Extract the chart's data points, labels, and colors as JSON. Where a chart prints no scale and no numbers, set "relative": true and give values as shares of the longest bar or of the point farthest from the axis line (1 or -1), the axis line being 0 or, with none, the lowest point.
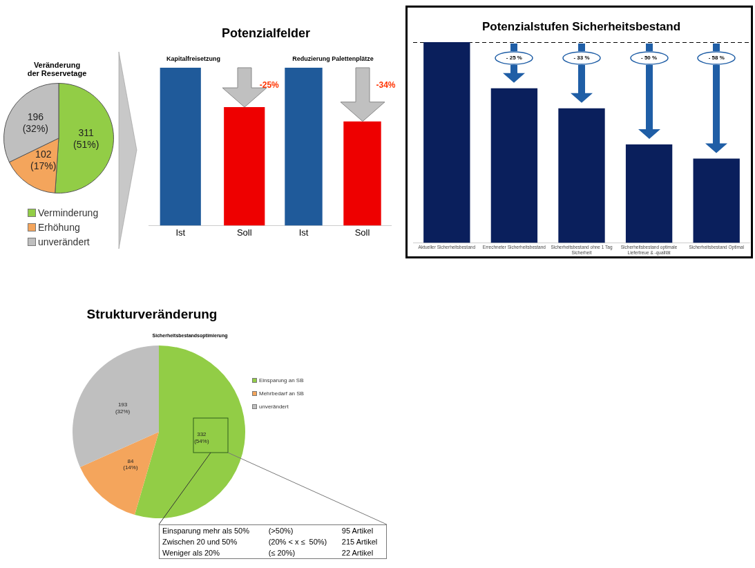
{
  "chart_data": [
    {
      "type": "pie",
      "title": "Veränderung\nder Reservetage",
      "categories": [
        "Verminderung",
        "Erhöhung",
        "unverändert"
      ],
      "values": [
        311,
        102,
        196
      ],
      "colors": [
        "#92cd46",
        "#f4a55c",
        "#bfbfbf"
      ],
      "value_labels": [
        "311\n(51%)",
        "102\n(17%)",
        "196\n(32%)"
      ],
      "legend": "bottom"
    },
    {
      "type": "bar",
      "title": "Potenzialfelder",
      "subtitle": "Kapitalfreisetzung",
      "categories": [
        "Ist",
        "Soll"
      ],
      "values": [
        1,
        0.75
      ],
      "colors": [
        "#1f5a9a",
        "#ee0000"
      ],
      "relative": true,
      "annotations": [
        "-25%"
      ]
    },
    {
      "type": "bar",
      "subtitle": "Reduzierung Palettenplätze",
      "categories": [
        "Ist",
        "Soll"
      ],
      "values": [
        1,
        0.66
      ],
      "colors": [
        "#1f5a9a",
        "#ee0000"
      ],
      "relative": true,
      "annotations": [
        "-34%"
      ]
    },
    {
      "type": "bar",
      "title": "Potenzialstufen Sicherheitsbestand",
      "categories": [
        "Aktueller Sicherheitsbestand",
        "Errechneter Sicherheitsbestand",
        "Sicherheitsbestand ohne 1 Tag Sicherheit",
        "Sicherheitsbestand optimale Liefertreue & -qualität",
        "Sicherheitsbestand Optimal"
      ],
      "values": [
        1,
        0.77,
        0.67,
        0.49,
        0.42
      ],
      "color": "#0a1f5c",
      "relative": true,
      "ref_lines": [
        {
          "axis": "y",
          "value": 1,
          "line_style": "dashed",
          "color": "#000000"
        }
      ],
      "annotations": [
        "- 25 %",
        "- 33 %",
        "- 50 %",
        "- 58 %"
      ]
    },
    {
      "type": "pie",
      "title": "Strukturveränderung",
      "subtitle": "Sicherheitsbestandsoptimierung",
      "categories": [
        "Einsparung an SB",
        "Mehrbedarf an SB",
        "unverändert"
      ],
      "values": [
        332,
        84,
        193
      ],
      "colors": [
        "#92cd46",
        "#f4a55c",
        "#bfbfbf"
      ],
      "value_labels": [
        "332\n(54%)",
        "84\n(14%)",
        "193\n(32%)"
      ],
      "legend": "right",
      "annotations": [
        "Einsparung mehr als 50%\t(>50%)\t95 Artikel",
        "Zwischen 20 und 50%\t(20% < x ≤  50%)\t215 Artikel",
        "Weniger als 20%\t(≤ 20%)\t22 Artikel"
      ]
    }
  ]
}
